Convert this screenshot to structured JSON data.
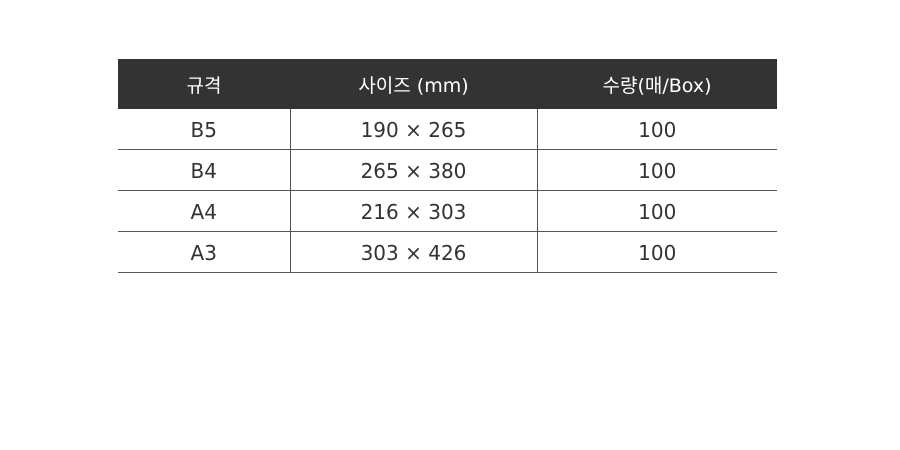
{
  "table": {
    "headers": [
      "규격",
      "사이즈 (mm)",
      "수량(매/Box)"
    ],
    "rows": [
      [
        "B5",
        "190 × 265",
        "100"
      ],
      [
        "B4",
        "265 × 380",
        "100"
      ],
      [
        "A4",
        "216 × 303",
        "100"
      ],
      [
        "A3",
        "303 × 426",
        "100"
      ]
    ]
  },
  "colors": {
    "header_bg": "#333333",
    "header_text": "#ffffff",
    "border": "#555555"
  }
}
